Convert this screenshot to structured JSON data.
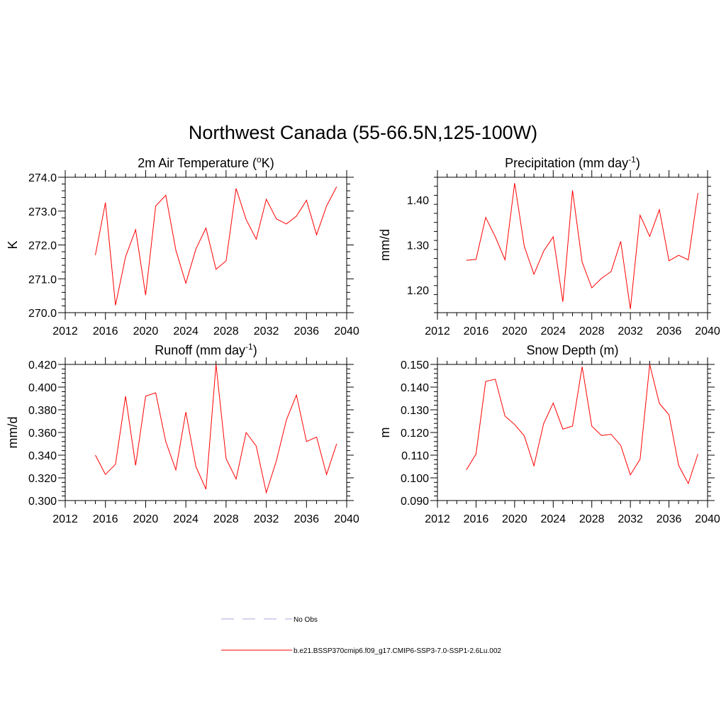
{
  "figure_title": "Northwest Canada (55-66.5N,125-100W)",
  "colors": {
    "model_line": "#ff0000",
    "obs_line": "#aaaadd"
  },
  "legend": [
    {
      "label": "No Obs",
      "style": "dashed",
      "color": "#aaaadd"
    },
    {
      "label": "b.e21.BSSP370cmip6.f09_g17.CMIP6-SSP3-7.0-SSP1-2.6Lu.002",
      "style": "solid",
      "color": "#ff0000"
    }
  ],
  "chart_data": [
    {
      "type": "line",
      "title": "2m Air Temperature (",
      "title_sup": "o",
      "title_end": "K)",
      "ylabel": "K",
      "xlim": [
        2012,
        2040
      ],
      "xticks": [
        2012,
        2016,
        2020,
        2024,
        2028,
        2032,
        2036,
        2040
      ],
      "ylim": [
        270.0,
        274.0
      ],
      "yticks": [
        "270.0",
        "271.0",
        "272.0",
        "273.0",
        "274.0"
      ],
      "series": [
        {
          "x": [
            2015,
            2016,
            2017,
            2018,
            2019,
            2020,
            2021,
            2022,
            2023,
            2024,
            2025,
            2026,
            2027,
            2028,
            2029,
            2030,
            2031,
            2032,
            2033,
            2034,
            2035,
            2036,
            2037,
            2038,
            2039
          ],
          "values": [
            271.7,
            273.25,
            270.22,
            271.65,
            272.45,
            270.52,
            273.15,
            273.47,
            271.85,
            270.87,
            271.88,
            272.5,
            271.28,
            271.53,
            273.67,
            272.75,
            272.17,
            273.35,
            272.77,
            272.62,
            272.85,
            273.32,
            272.3,
            273.15,
            273.72
          ]
        }
      ]
    },
    {
      "type": "line",
      "title": "Precipitation (mm day",
      "title_sup": "-1",
      "title_end": ")",
      "ylabel": "mm/d",
      "xlim": [
        2012,
        2040
      ],
      "xticks": [
        2012,
        2016,
        2020,
        2024,
        2028,
        2032,
        2036,
        2040
      ],
      "ylim": [
        1.15,
        1.45
      ],
      "yticks": [
        "1.20",
        "1.30",
        "1.40"
      ],
      "series": [
        {
          "x": [
            2015,
            2016,
            2017,
            2018,
            2019,
            2020,
            2021,
            2022,
            2023,
            2024,
            2025,
            2026,
            2027,
            2028,
            2029,
            2030,
            2031,
            2032,
            2033,
            2034,
            2035,
            2036,
            2037,
            2038,
            2039
          ],
          "values": [
            1.266,
            1.268,
            1.361,
            1.318,
            1.267,
            1.437,
            1.297,
            1.235,
            1.286,
            1.318,
            1.174,
            1.421,
            1.262,
            1.205,
            1.226,
            1.241,
            1.308,
            1.158,
            1.366,
            1.319,
            1.378,
            1.265,
            1.277,
            1.267,
            1.415
          ]
        }
      ]
    },
    {
      "type": "line",
      "title": "Runoff (mm day",
      "title_sup": "-1",
      "title_end": ")",
      "ylabel": "mm/d",
      "xlim": [
        2012,
        2040
      ],
      "xticks": [
        2012,
        2016,
        2020,
        2024,
        2028,
        2032,
        2036,
        2040
      ],
      "ylim": [
        0.3,
        0.42
      ],
      "yticks": [
        "0.300",
        "0.320",
        "0.340",
        "0.360",
        "0.380",
        "0.400",
        "0.420"
      ],
      "series": [
        {
          "x": [
            2015,
            2016,
            2017,
            2018,
            2019,
            2020,
            2021,
            2022,
            2023,
            2024,
            2025,
            2026,
            2027,
            2028,
            2029,
            2030,
            2031,
            2032,
            2033,
            2034,
            2035,
            2036,
            2037,
            2038,
            2039
          ],
          "values": [
            0.34,
            0.323,
            0.332,
            0.392,
            0.331,
            0.392,
            0.395,
            0.352,
            0.327,
            0.378,
            0.33,
            0.31,
            0.42,
            0.337,
            0.319,
            0.36,
            0.348,
            0.307,
            0.335,
            0.371,
            0.393,
            0.352,
            0.356,
            0.323,
            0.35
          ]
        }
      ]
    },
    {
      "type": "line",
      "title": "Snow Depth (m)",
      "title_sup": "",
      "title_end": "",
      "ylabel": "m",
      "xlim": [
        2012,
        2040
      ],
      "xticks": [
        2012,
        2016,
        2020,
        2024,
        2028,
        2032,
        2036,
        2040
      ],
      "ylim": [
        0.09,
        0.15
      ],
      "yticks": [
        "0.090",
        "0.100",
        "0.110",
        "0.120",
        "0.130",
        "0.140",
        "0.150"
      ],
      "series": [
        {
          "x": [
            2015,
            2016,
            2017,
            2018,
            2019,
            2020,
            2021,
            2022,
            2023,
            2024,
            2025,
            2026,
            2027,
            2028,
            2029,
            2030,
            2031,
            2032,
            2033,
            2034,
            2035,
            2036,
            2037,
            2038,
            2039
          ],
          "values": [
            0.1035,
            0.1105,
            0.1425,
            0.1435,
            0.1272,
            0.1235,
            0.1185,
            0.1053,
            0.1238,
            0.133,
            0.1215,
            0.1228,
            0.149,
            0.1228,
            0.1187,
            0.1192,
            0.1143,
            0.1013,
            0.1082,
            0.15,
            0.1328,
            0.1278,
            0.1055,
            0.0975,
            0.1105
          ]
        }
      ]
    }
  ]
}
